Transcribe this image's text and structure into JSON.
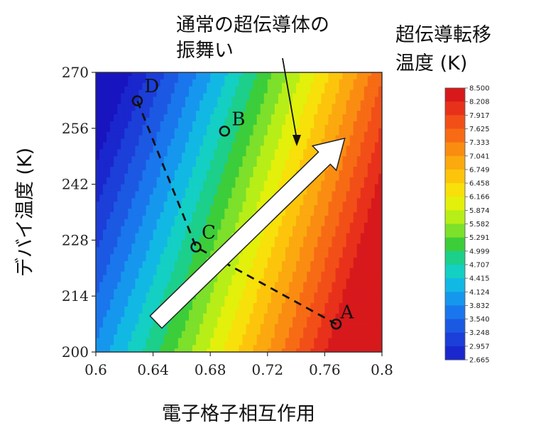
{
  "chart_data": {
    "type": "heatmap",
    "title": "",
    "xlabel": "電子格子相互作用",
    "ylabel": "デバイ温度 (K)",
    "xlim": [
      0.6,
      0.8
    ],
    "ylim": [
      200,
      270
    ],
    "x_ticks": [
      "0.6",
      "0.64",
      "0.68",
      "0.72",
      "0.76",
      "0.8"
    ],
    "y_ticks": [
      "200",
      "214",
      "228",
      "242",
      "256",
      "270"
    ],
    "colorbar": {
      "title_line1": "超伝導転移",
      "title_line2": "温度 (K)",
      "levels": [
        "8.500",
        "8.208",
        "7.917",
        "7.625",
        "7.333",
        "7.041",
        "6.749",
        "6.458",
        "6.166",
        "5.874",
        "5.582",
        "5.291",
        "4.999",
        "4.707",
        "4.415",
        "4.124",
        "3.832",
        "3.540",
        "3.248",
        "2.957",
        "2.665"
      ],
      "colors": [
        "#d7191c",
        "#e8311a",
        "#f24f18",
        "#f76b15",
        "#fa8c12",
        "#fba90f",
        "#fcc50c",
        "#f8e00a",
        "#e3f00b",
        "#b7ee17",
        "#7de02a",
        "#3ccd3a",
        "#1ccf8a",
        "#14cfc3",
        "#12b8e4",
        "#1697ee",
        "#1a76ec",
        "#1c59e3",
        "#1c3ed9",
        "#1a27cd",
        "#1814bf"
      ]
    },
    "tc_range": [
      2.665,
      8.5
    ],
    "points": [
      {
        "label": "A",
        "x": 0.768,
        "y": 207
      },
      {
        "label": "B",
        "x": 0.69,
        "y": 255.3
      },
      {
        "label": "C",
        "x": 0.67,
        "y": 226.3
      },
      {
        "label": "D",
        "x": 0.629,
        "y": 262.9
      }
    ],
    "dashed_path": [
      "D",
      "C",
      "A"
    ],
    "arrow": {
      "from": {
        "x": 0.642,
        "y": 207.5
      },
      "to": {
        "x": 0.774,
        "y": 253.5
      }
    },
    "annotation": {
      "line1": "通常の超伝導体の",
      "line2": "振舞い"
    },
    "grid": false,
    "legend": "colorbar-right"
  }
}
